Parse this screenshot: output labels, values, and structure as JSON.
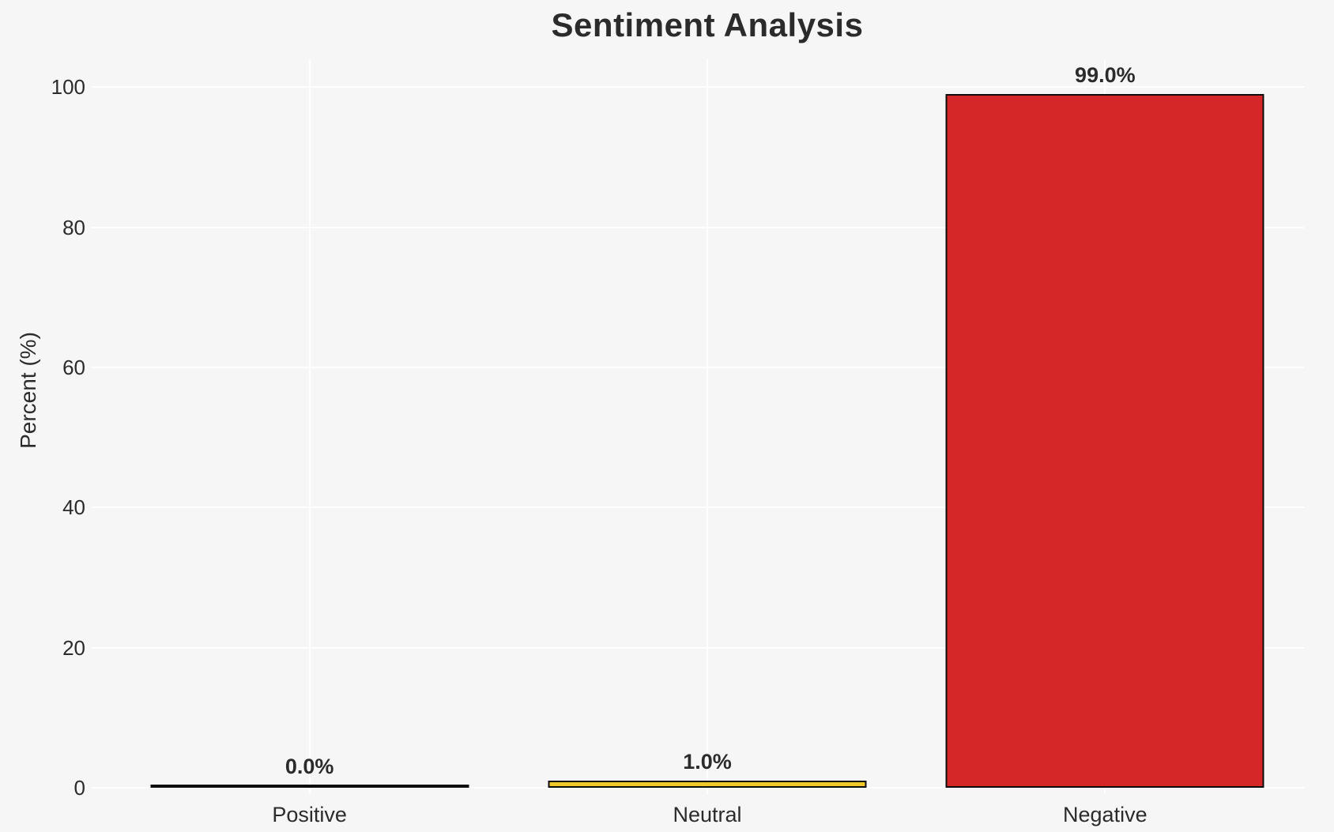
{
  "figure": {
    "background_color": "#f6f6f7",
    "grid_color": "#ffffff",
    "text_color": "#2b2b2b",
    "bar_edge_color": "#0d0d0d"
  },
  "chart_data": {
    "type": "bar",
    "title": "Sentiment Analysis",
    "xlabel": "",
    "ylabel": "Percent (%)",
    "categories": [
      "Positive",
      "Neutral",
      "Negative"
    ],
    "values": [
      0.0,
      1.0,
      99.0
    ],
    "value_labels": [
      "0.0%",
      "1.0%",
      "99.0%"
    ],
    "bar_colors": [
      null,
      "#f0c929",
      "#d62728"
    ],
    "yticks": [
      0,
      20,
      40,
      60,
      80,
      100
    ],
    "ylim": [
      0,
      104
    ],
    "grid": true,
    "legend": false
  }
}
